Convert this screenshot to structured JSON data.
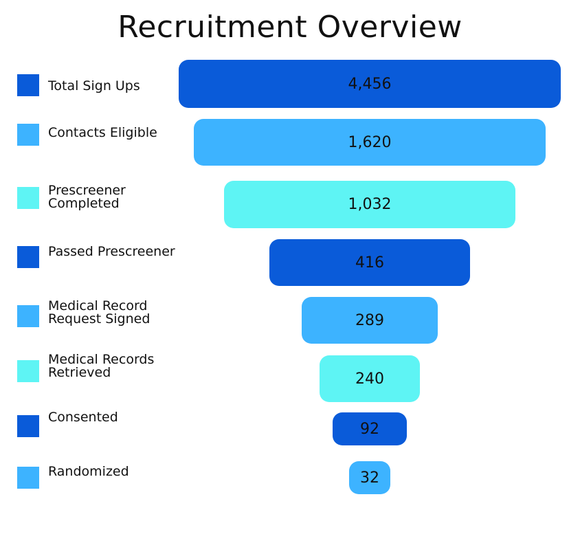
{
  "chart_data": {
    "type": "bar",
    "title": "Recruitment Overview",
    "categories": [
      "Total Sign Ups",
      "Contacts Eligible",
      "Prescreener Completed",
      "Passed Prescreener",
      "Medical Record Request Signed",
      "Medical Records Retrieved",
      "Consented",
      "Randomized"
    ],
    "value_labels": [
      "4,456",
      "1,620",
      "1,032",
      "416",
      "289",
      "240",
      "92",
      "32"
    ],
    "legend": [
      {
        "label": "Total Sign Ups",
        "color": "#0a5bd9"
      },
      {
        "label": "Contacts Eligible",
        "color": "#3db3ff"
      },
      {
        "label": "Prescreener Completed",
        "color": "#5ef4f4"
      },
      {
        "label": "Passed Prescreener",
        "color": "#0a5bd9"
      },
      {
        "label": "Medical Record Request Signed",
        "color": "#3db3ff"
      },
      {
        "label": "Medical Records Retrieved",
        "color": "#5ef4f4"
      },
      {
        "label": "Consented",
        "color": "#0a5bd9"
      },
      {
        "label": "Randomized",
        "color": "#3db3ff"
      }
    ]
  }
}
